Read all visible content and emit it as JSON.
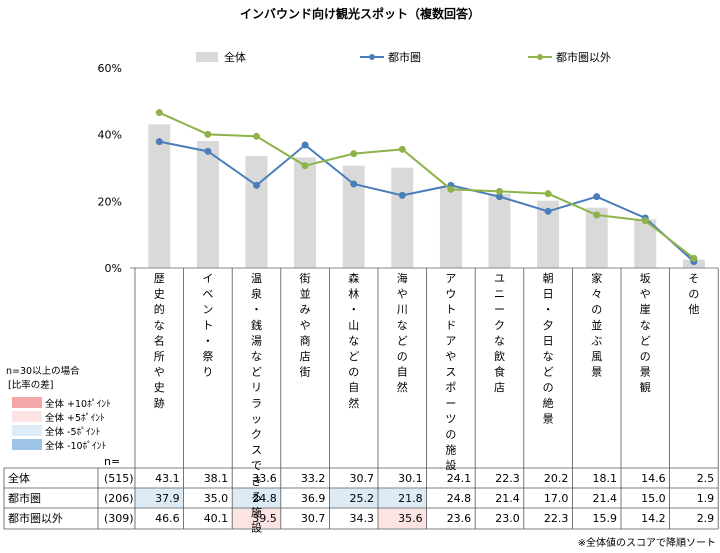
{
  "chart_data": {
    "type": "bar",
    "title": "インバウンド向け観光スポット（複数回答）",
    "categories": [
      "歴史的な名所や史跡",
      "イベント・祭り",
      "温泉・銭湯などリラックスできる施設",
      "街並みや商店街",
      "森林・山などの自然",
      "海や川などの自然",
      "アウトドアやスポーツの施設",
      "ユニークな飲食店",
      "朝日・夕日などの絶景",
      "家々の並ぶ風景",
      "坂や崖などの景観",
      "その他"
    ],
    "series": [
      {
        "name": "全体",
        "type": "bar",
        "color": "#d9d9d9",
        "values": [
          43.1,
          38.1,
          33.6,
          33.2,
          30.7,
          30.1,
          24.1,
          22.3,
          20.2,
          18.1,
          14.6,
          2.5
        ]
      },
      {
        "name": "都市圏",
        "type": "line",
        "color": "#4a7ebb",
        "values": [
          37.9,
          35.0,
          24.8,
          36.9,
          25.2,
          21.8,
          24.8,
          21.4,
          17.0,
          21.4,
          15.0,
          1.9
        ]
      },
      {
        "name": "都市圏以外",
        "type": "line",
        "color": "#8db34a",
        "values": [
          46.6,
          40.1,
          39.5,
          30.7,
          34.3,
          35.6,
          23.6,
          23.0,
          22.3,
          15.9,
          14.2,
          2.9
        ]
      }
    ],
    "y_ticks": [
      "0%",
      "20%",
      "40%",
      "60%"
    ],
    "ylim": [
      0,
      60
    ],
    "legend_position": "top",
    "table": {
      "header_n": "n=",
      "rows": [
        {
          "label": "全体",
          "n": "(515)"
        },
        {
          "label": "都市圏",
          "n": "(206)"
        },
        {
          "label": "都市圏以外",
          "n": "(309)"
        }
      ],
      "highlights": {
        "1": {
          "0": "#ddebf7",
          "2": "#ddebf7",
          "4": "#ddebf7",
          "5": "#ddebf7"
        },
        "2": {
          "2": "#fce4e4",
          "5": "#fce4e4"
        }
      }
    },
    "key": {
      "n_note": "n=30以上の場合",
      "header": "[比率の差]",
      "items": [
        {
          "label": "全体 +10ﾎﾟｲﾝﾄ",
          "color": "#f4a7a7"
        },
        {
          "label": "全体  +5ﾎﾟｲﾝﾄ",
          "color": "#fce4e4"
        },
        {
          "label": "全体  -5ﾎﾟｲﾝﾄ",
          "color": "#ddebf7"
        },
        {
          "label": "全体 -10ﾎﾟｲﾝﾄ",
          "color": "#9dc3e6"
        }
      ]
    },
    "footnote": "※全体値のスコアで降順ソート"
  }
}
